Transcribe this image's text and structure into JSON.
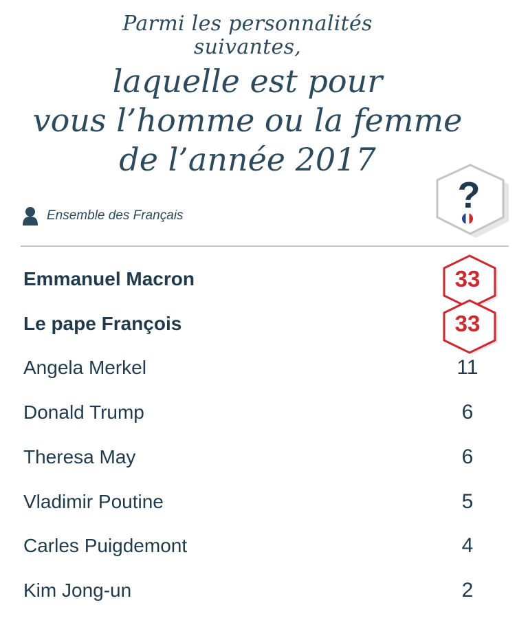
{
  "title": {
    "line1": "Parmi les personnalités",
    "line2": "suivantes,",
    "line3": "laquelle est pour",
    "line4": "vous l’homme ou la femme",
    "line5": "de l’année 2017"
  },
  "badge": {
    "symbol": "?",
    "icon": "question-hexagon-icon"
  },
  "audience": {
    "icon": "person-icon",
    "label": "Ensemble des Français"
  },
  "colors": {
    "text": "#1f3a4d",
    "accent": "#d0262e",
    "divider": "#c8c8c8"
  },
  "chart_data": {
    "type": "table",
    "title": "Parmi les personnalités suivantes, laquelle est pour vous l’homme ou la femme de l’année 2017",
    "categories": [
      "Emmanuel Macron",
      "Le pape François",
      "Angela Merkel",
      "Donald Trump",
      "Theresa May",
      "Vladimir Poutine",
      "Carles Puigdemont",
      "Kim Jong-un"
    ],
    "values": [
      "33",
      "33",
      "11",
      "6",
      "6",
      "5",
      "4",
      "2"
    ],
    "highlighted": [
      true,
      true,
      false,
      false,
      false,
      false,
      false,
      false
    ]
  }
}
